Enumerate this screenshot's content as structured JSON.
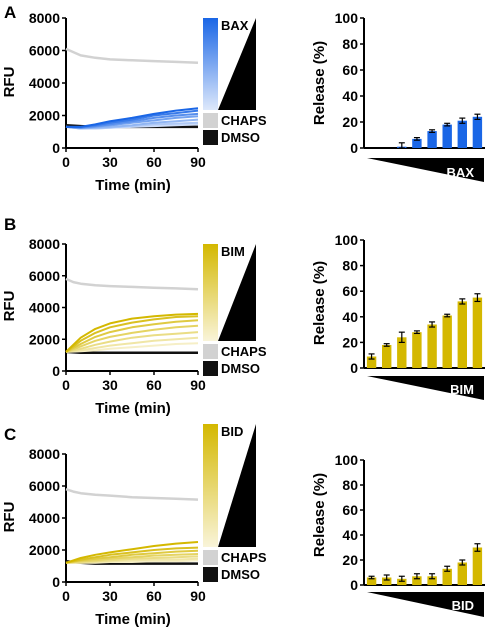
{
  "figure": {
    "panels": [
      "A",
      "B",
      "C"
    ]
  },
  "colors": {
    "BAX": "#1a66e6",
    "BIM": "#d4b800",
    "BID": "#d4b800",
    "CHAPS": "#d2d2d2",
    "DMSO": "#111111",
    "errorbar": "#000000"
  },
  "chart_data": [
    {
      "panel": "A",
      "type": "line",
      "xlabel": "Time (min)",
      "ylabel": "RFU",
      "xlim": [
        0,
        90
      ],
      "ylim": [
        0,
        8000
      ],
      "xticks": [
        0,
        30,
        60,
        90
      ],
      "yticks": [
        0,
        2000,
        4000,
        6000,
        8000
      ],
      "legend": [
        "BAX",
        "CHAPS",
        "DMSO"
      ],
      "series": [
        {
          "name": "CHAPS",
          "role": "control",
          "x": [
            0,
            5,
            10,
            20,
            30,
            45,
            60,
            75,
            90
          ],
          "y": [
            6100,
            5900,
            5700,
            5550,
            5450,
            5400,
            5350,
            5300,
            5250
          ]
        },
        {
          "name": "DMSO",
          "role": "control",
          "x": [
            0,
            10,
            20,
            30,
            45,
            60,
            75,
            90
          ],
          "y": [
            1400,
            1350,
            1300,
            1300,
            1300,
            1300,
            1300,
            1300
          ]
        },
        {
          "name": "BAX",
          "level": 1,
          "x": [
            0,
            10,
            20,
            30,
            45,
            60,
            75,
            90
          ],
          "y": [
            1300,
            1200,
            1200,
            1250,
            1300,
            1350,
            1400,
            1450
          ]
        },
        {
          "name": "BAX",
          "level": 2,
          "x": [
            0,
            10,
            20,
            30,
            45,
            60,
            75,
            90
          ],
          "y": [
            1300,
            1200,
            1200,
            1250,
            1350,
            1450,
            1500,
            1550
          ]
        },
        {
          "name": "BAX",
          "level": 3,
          "x": [
            0,
            10,
            20,
            30,
            45,
            60,
            75,
            90
          ],
          "y": [
            1300,
            1200,
            1250,
            1300,
            1400,
            1550,
            1650,
            1750
          ]
        },
        {
          "name": "BAX",
          "level": 4,
          "x": [
            0,
            10,
            20,
            30,
            45,
            60,
            75,
            90
          ],
          "y": [
            1300,
            1250,
            1300,
            1400,
            1550,
            1700,
            1850,
            1950
          ]
        },
        {
          "name": "BAX",
          "level": 5,
          "x": [
            0,
            10,
            20,
            30,
            45,
            60,
            75,
            90
          ],
          "y": [
            1300,
            1250,
            1350,
            1450,
            1650,
            1850,
            2000,
            2100
          ]
        },
        {
          "name": "BAX",
          "level": 6,
          "x": [
            0,
            10,
            20,
            30,
            45,
            60,
            75,
            90
          ],
          "y": [
            1300,
            1300,
            1400,
            1550,
            1750,
            2000,
            2150,
            2300
          ]
        },
        {
          "name": "BAX",
          "level": 7,
          "x": [
            0,
            10,
            20,
            30,
            45,
            60,
            75,
            90
          ],
          "y": [
            1300,
            1300,
            1450,
            1650,
            1850,
            2100,
            2300,
            2450
          ]
        }
      ]
    },
    {
      "panel": "A",
      "type": "bar",
      "xlabel": "BAX",
      "ylabel": "Release (%)",
      "ylim": [
        0,
        100
      ],
      "yticks": [
        0,
        20,
        40,
        60,
        80,
        100
      ],
      "values": [
        0,
        0,
        1,
        7,
        13,
        18,
        21,
        24
      ],
      "errors": [
        0,
        0,
        3,
        1,
        1,
        1,
        2,
        2
      ]
    },
    {
      "panel": "B",
      "type": "line",
      "xlabel": "Time (min)",
      "ylabel": "RFU",
      "xlim": [
        0,
        90
      ],
      "ylim": [
        0,
        8000
      ],
      "xticks": [
        0,
        30,
        60,
        90
      ],
      "yticks": [
        0,
        2000,
        4000,
        6000,
        8000
      ],
      "legend": [
        "BIM",
        "CHAPS",
        "DMSO"
      ],
      "series": [
        {
          "name": "CHAPS",
          "role": "control",
          "x": [
            0,
            5,
            10,
            20,
            30,
            45,
            60,
            75,
            90
          ],
          "y": [
            5800,
            5600,
            5500,
            5400,
            5350,
            5300,
            5250,
            5200,
            5150
          ]
        },
        {
          "name": "DMSO",
          "role": "control",
          "x": [
            0,
            10,
            20,
            30,
            45,
            60,
            75,
            90
          ],
          "y": [
            1200,
            1150,
            1150,
            1150,
            1150,
            1150,
            1150,
            1150
          ]
        },
        {
          "name": "BIM",
          "level": 1,
          "x": [
            0,
            10,
            20,
            30,
            45,
            60,
            75,
            90
          ],
          "y": [
            1200,
            1250,
            1300,
            1400,
            1500,
            1600,
            1700,
            1750
          ]
        },
        {
          "name": "BIM",
          "level": 2,
          "x": [
            0,
            10,
            20,
            30,
            45,
            60,
            75,
            90
          ],
          "y": [
            1200,
            1300,
            1450,
            1600,
            1750,
            1900,
            2000,
            2100
          ]
        },
        {
          "name": "BIM",
          "level": 3,
          "x": [
            0,
            10,
            20,
            30,
            45,
            60,
            75,
            90
          ],
          "y": [
            1200,
            1400,
            1650,
            1850,
            2100,
            2250,
            2350,
            2450
          ]
        },
        {
          "name": "BIM",
          "level": 4,
          "x": [
            0,
            10,
            20,
            30,
            45,
            60,
            75,
            90
          ],
          "y": [
            1200,
            1550,
            1900,
            2150,
            2400,
            2600,
            2750,
            2850
          ]
        },
        {
          "name": "BIM",
          "level": 5,
          "x": [
            0,
            10,
            20,
            30,
            45,
            60,
            75,
            90
          ],
          "y": [
            1200,
            1700,
            2150,
            2450,
            2750,
            2950,
            3100,
            3200
          ]
        },
        {
          "name": "BIM",
          "level": 6,
          "x": [
            0,
            10,
            20,
            30,
            45,
            60,
            75,
            90
          ],
          "y": [
            1200,
            1900,
            2400,
            2750,
            3050,
            3250,
            3400,
            3450
          ]
        },
        {
          "name": "BIM",
          "level": 7,
          "x": [
            0,
            10,
            20,
            30,
            45,
            60,
            75,
            90
          ],
          "y": [
            1200,
            2100,
            2650,
            3000,
            3300,
            3450,
            3550,
            3600
          ]
        }
      ]
    },
    {
      "panel": "B",
      "type": "bar",
      "xlabel": "BIM",
      "ylabel": "Release (%)",
      "ylim": [
        0,
        100
      ],
      "yticks": [
        0,
        20,
        40,
        60,
        80,
        100
      ],
      "values": [
        9,
        18,
        24,
        28,
        34,
        41,
        52,
        55
      ],
      "errors": [
        2,
        1,
        4,
        1,
        2,
        1,
        2,
        3
      ]
    },
    {
      "panel": "C",
      "type": "line",
      "xlabel": "Time (min)",
      "ylabel": "RFU",
      "xlim": [
        0,
        90
      ],
      "ylim": [
        0,
        8000
      ],
      "xticks": [
        0,
        30,
        60,
        90
      ],
      "yticks": [
        0,
        2000,
        4000,
        6000,
        8000
      ],
      "legend": [
        "BID",
        "CHAPS",
        "DMSO"
      ],
      "series": [
        {
          "name": "CHAPS",
          "role": "control",
          "x": [
            0,
            5,
            10,
            20,
            30,
            45,
            60,
            75,
            90
          ],
          "y": [
            5800,
            5650,
            5550,
            5450,
            5400,
            5300,
            5250,
            5200,
            5150
          ]
        },
        {
          "name": "DMSO",
          "role": "control",
          "x": [
            0,
            10,
            20,
            30,
            45,
            60,
            75,
            90
          ],
          "y": [
            1300,
            1200,
            1150,
            1150,
            1150,
            1150,
            1150,
            1150
          ]
        },
        {
          "name": "BID",
          "level": 1,
          "x": [
            0,
            10,
            20,
            30,
            45,
            60,
            75,
            90
          ],
          "y": [
            1200,
            1200,
            1200,
            1250,
            1250,
            1300,
            1300,
            1350
          ]
        },
        {
          "name": "BID",
          "level": 2,
          "x": [
            0,
            10,
            20,
            30,
            45,
            60,
            75,
            90
          ],
          "y": [
            1200,
            1200,
            1250,
            1300,
            1350,
            1400,
            1400,
            1450
          ]
        },
        {
          "name": "BID",
          "level": 3,
          "x": [
            0,
            10,
            20,
            30,
            45,
            60,
            75,
            90
          ],
          "y": [
            1200,
            1250,
            1300,
            1350,
            1450,
            1500,
            1550,
            1600
          ]
        },
        {
          "name": "BID",
          "level": 4,
          "x": [
            0,
            10,
            20,
            30,
            45,
            60,
            75,
            90
          ],
          "y": [
            1200,
            1300,
            1350,
            1450,
            1550,
            1650,
            1700,
            1750
          ]
        },
        {
          "name": "BID",
          "level": 5,
          "x": [
            0,
            10,
            20,
            30,
            45,
            60,
            75,
            90
          ],
          "y": [
            1200,
            1350,
            1450,
            1550,
            1700,
            1800,
            1900,
            1950
          ]
        },
        {
          "name": "BID",
          "level": 6,
          "x": [
            0,
            10,
            20,
            30,
            45,
            60,
            75,
            90
          ],
          "y": [
            1200,
            1400,
            1550,
            1700,
            1850,
            2000,
            2100,
            2150
          ]
        },
        {
          "name": "BID",
          "level": 7,
          "x": [
            0,
            10,
            20,
            30,
            45,
            60,
            75,
            90
          ],
          "y": [
            1200,
            1500,
            1700,
            1850,
            2050,
            2250,
            2400,
            2500
          ]
        }
      ]
    },
    {
      "panel": "C",
      "type": "bar",
      "xlabel": "BID",
      "ylabel": "Release (%)",
      "ylim": [
        0,
        100
      ],
      "yticks": [
        0,
        20,
        40,
        60,
        80,
        100
      ],
      "values": [
        6,
        6,
        5,
        7,
        7,
        13,
        18,
        30
      ],
      "errors": [
        1,
        2,
        2,
        2,
        2,
        2,
        2,
        3
      ]
    }
  ]
}
